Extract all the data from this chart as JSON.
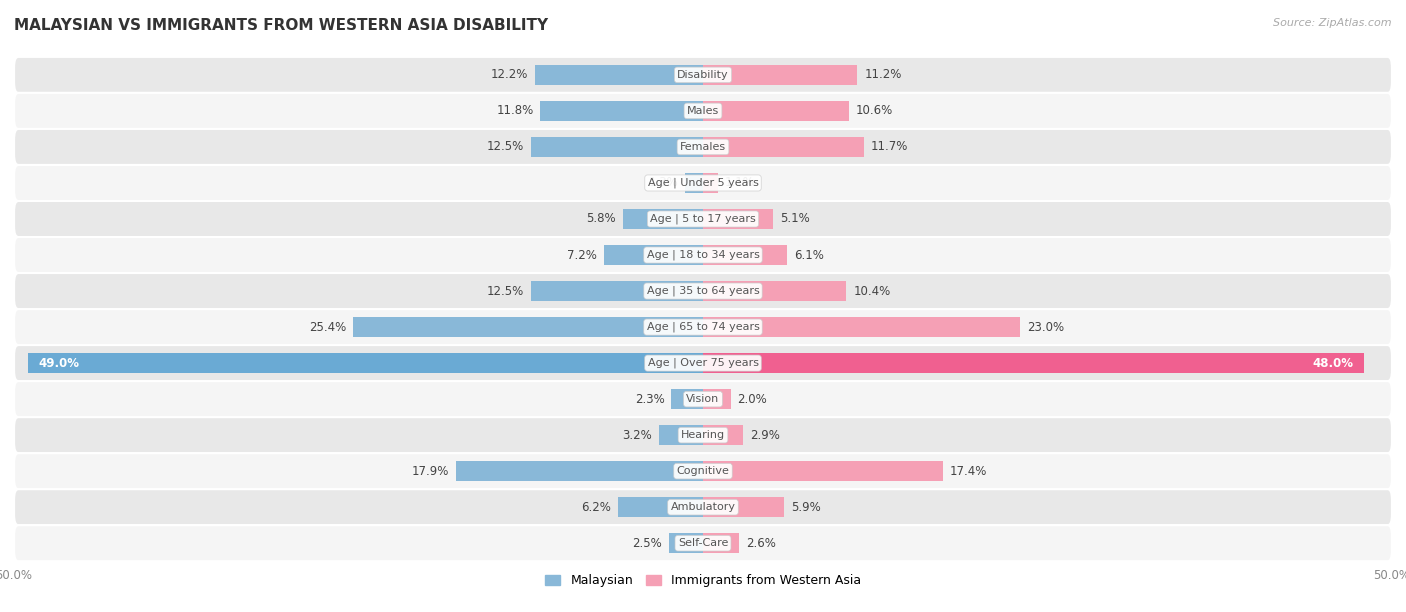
{
  "title": "MALAYSIAN VS IMMIGRANTS FROM WESTERN ASIA DISABILITY",
  "source": "Source: ZipAtlas.com",
  "categories": [
    "Disability",
    "Males",
    "Females",
    "Age | Under 5 years",
    "Age | 5 to 17 years",
    "Age | 18 to 34 years",
    "Age | 35 to 64 years",
    "Age | 65 to 74 years",
    "Age | Over 75 years",
    "Vision",
    "Hearing",
    "Cognitive",
    "Ambulatory",
    "Self-Care"
  ],
  "malaysian": [
    12.2,
    11.8,
    12.5,
    1.3,
    5.8,
    7.2,
    12.5,
    25.4,
    49.0,
    2.3,
    3.2,
    17.9,
    6.2,
    2.5
  ],
  "immigrants": [
    11.2,
    10.6,
    11.7,
    1.1,
    5.1,
    6.1,
    10.4,
    23.0,
    48.0,
    2.0,
    2.9,
    17.4,
    5.9,
    2.6
  ],
  "max_val": 50.0,
  "bar_height": 0.55,
  "malaysian_color": "#89b8d8",
  "immigrant_color": "#f5a0b5",
  "immigrant_color_large": "#f06090",
  "malaysian_color_large": "#6aaad4",
  "bg_color_odd": "#e8e8e8",
  "bg_color_even": "#f5f5f5",
  "label_fontsize": 8.5,
  "title_fontsize": 11,
  "category_fontsize": 8,
  "pill_bg": "#f0f0f0",
  "axis_tick_fontsize": 8.5
}
